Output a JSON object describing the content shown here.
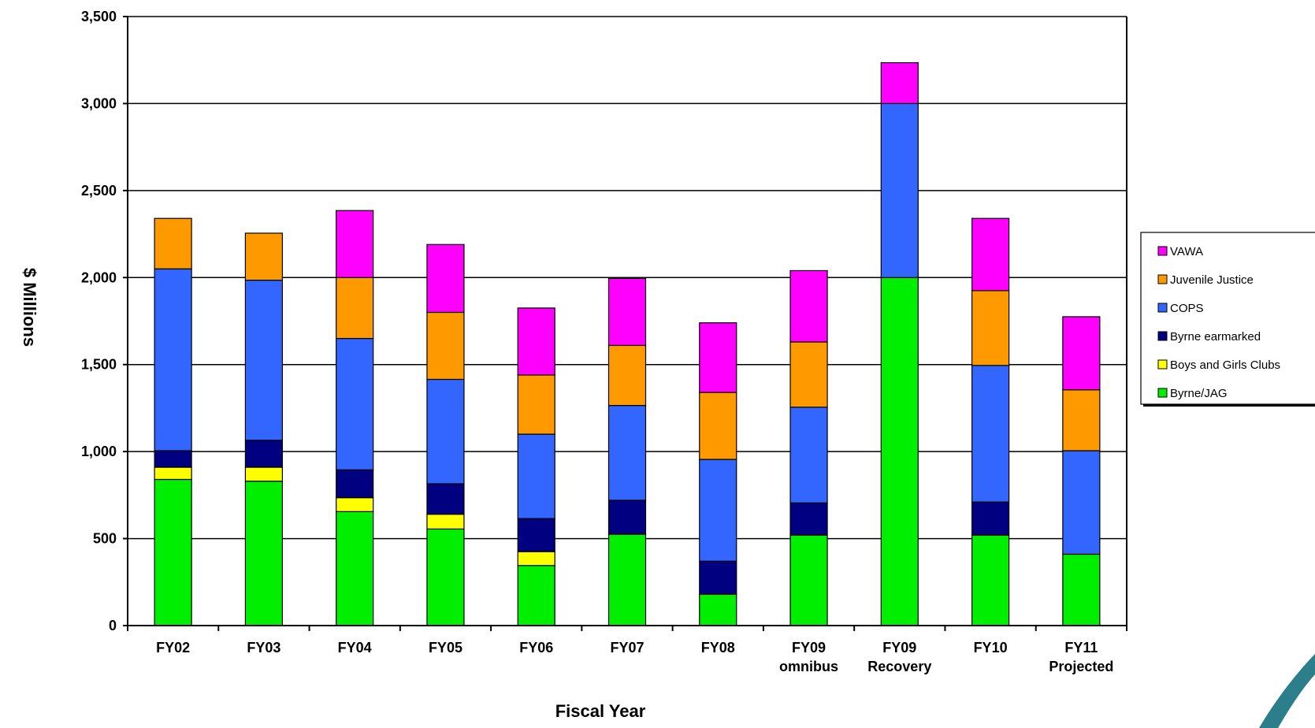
{
  "chart_data": {
    "type": "bar",
    "stacked": true,
    "title": "",
    "xlabel": "Fiscal Year",
    "ylabel": "$ Millions",
    "ylim": [
      0,
      3500
    ],
    "yticks": [
      0,
      500,
      1000,
      1500,
      2000,
      2500,
      3000,
      3500
    ],
    "ytick_labels": [
      "0",
      "500",
      "1,000",
      "1,500",
      "2,000",
      "2,500",
      "3,000",
      "3,500"
    ],
    "grid": true,
    "legend_position": "right",
    "categories": [
      [
        "FY02"
      ],
      [
        "FY03"
      ],
      [
        "FY04"
      ],
      [
        "FY05"
      ],
      [
        "FY06"
      ],
      [
        "FY07"
      ],
      [
        "FY08"
      ],
      [
        "FY09",
        "omnibus"
      ],
      [
        "FY09",
        "Recovery"
      ],
      [
        "FY10"
      ],
      [
        "FY11",
        "Projected"
      ]
    ],
    "series": [
      {
        "name": "Byrne/JAG",
        "color": "#00ee00",
        "values": [
          840,
          830,
          655,
          555,
          345,
          525,
          180,
          520,
          2000,
          520,
          410
        ]
      },
      {
        "name": "Boys and Girls Clubs",
        "color": "#ffff00",
        "values": [
          70,
          80,
          80,
          85,
          80,
          0,
          0,
          0,
          0,
          0,
          0
        ]
      },
      {
        "name": "Byrne earmarked",
        "color": "#000080",
        "values": [
          95,
          155,
          160,
          175,
          190,
          195,
          190,
          185,
          0,
          190,
          0
        ]
      },
      {
        "name": "COPS",
        "color": "#3366ff",
        "values": [
          1045,
          920,
          755,
          600,
          485,
          545,
          585,
          550,
          1000,
          785,
          595
        ]
      },
      {
        "name": "Juvenile Justice",
        "color": "#ff9900",
        "values": [
          290,
          270,
          350,
          385,
          340,
          345,
          385,
          375,
          0,
          430,
          350
        ]
      },
      {
        "name": "VAWA",
        "color": "#ff00ff",
        "values": [
          0,
          0,
          385,
          390,
          385,
          385,
          400,
          410,
          235,
          415,
          420
        ]
      }
    ],
    "legend_order": [
      "VAWA",
      "Juvenile Justice",
      "COPS",
      "Byrne earmarked",
      "Boys and Girls Clubs",
      "Byrne/JAG"
    ]
  },
  "decoration": {
    "corner_accent_color": "#2a7f8a"
  }
}
